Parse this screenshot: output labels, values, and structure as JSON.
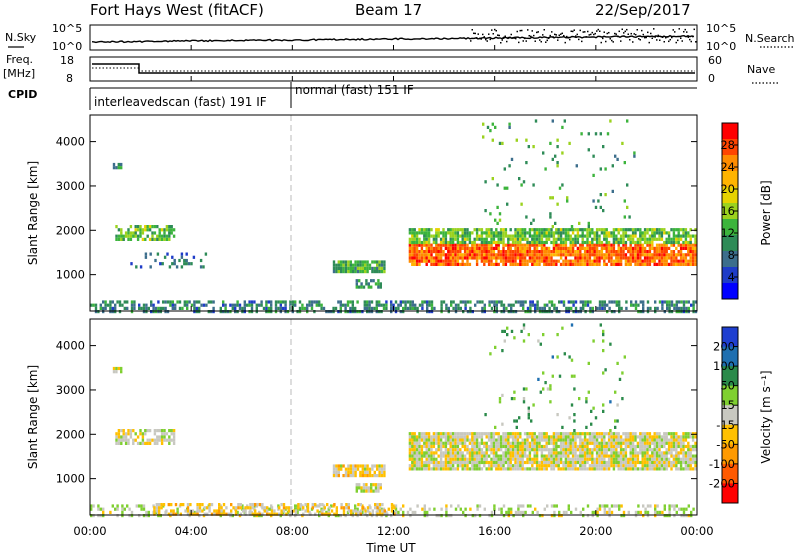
{
  "header": {
    "station": "Fort Hays West (fitACF)",
    "beam": "Beam 17",
    "date": "22/Sep/2017"
  },
  "top_panels": {
    "nsky_label": "N.Sky",
    "nsky_ticks": [
      "10^5",
      "10^0"
    ],
    "nsearch_label": "N.Search",
    "nsearch_ticks": [
      "10^5",
      "10^0"
    ],
    "freq_label": "Freq.",
    "freq_unit": "[MHz]",
    "freq_ticks": [
      "18",
      "8"
    ],
    "nave_label": "Nave",
    "nave_ticks": [
      "60",
      "0"
    ],
    "cpid_label": "CPID",
    "cpid_segments": [
      "interleavedscan (fast) 191 IF",
      "normal (fast) 151 IF"
    ]
  },
  "axes": {
    "ylabel": "Slant Range [km]",
    "xlabel": "Time UT",
    "yticks": [
      "4000",
      "3000",
      "2000",
      "1000"
    ],
    "xticks": [
      "00:00",
      "04:00",
      "08:00",
      "12:00",
      "16:00",
      "20:00",
      "00:00"
    ]
  },
  "colorbars": {
    "power": {
      "label": "Power [dB]",
      "ticks": [
        "28",
        "24",
        "20",
        "16",
        "12",
        "8",
        "4"
      ],
      "colors": [
        "#ff0000",
        "#ff4500",
        "#ff8c00",
        "#ffb400",
        "#e6d200",
        "#9bd21e",
        "#3cb43c",
        "#2e8b57",
        "#3c6e8c",
        "#1e3cc8",
        "#0000ff"
      ]
    },
    "velocity": {
      "label": "Velocity [m s⁻¹]",
      "ticks": [
        "200",
        "100",
        "50",
        "15",
        "-15",
        "-50",
        "-100",
        "-200"
      ],
      "colors": [
        "#1f3fcf",
        "#1f6fb0",
        "#2a8a4a",
        "#7fcf30",
        "#c8c8c0",
        "#ffc000",
        "#ff9a00",
        "#ff5a00",
        "#ff0000"
      ]
    }
  },
  "chart_data": [
    {
      "type": "heatmap",
      "title": "Power",
      "xlabel": "Time UT",
      "ylabel": "Slant Range [km]",
      "xlim_hours": [
        0,
        24
      ],
      "ylim_km": [
        180,
        4600
      ],
      "clim_dB": [
        0,
        32
      ],
      "regions": [
        {
          "t_start": 0.0,
          "t_end": 24.0,
          "r_min": 180,
          "r_max": 420,
          "value": 9,
          "density": 0.55
        },
        {
          "t_start": 0.9,
          "t_end": 1.2,
          "r_min": 3380,
          "r_max": 3520,
          "value": 10,
          "density": 0.9
        },
        {
          "t_start": 1.0,
          "t_end": 3.3,
          "r_min": 1820,
          "r_max": 2120,
          "value": 14,
          "density": 0.7
        },
        {
          "t_start": 1.5,
          "t_end": 4.6,
          "r_min": 1200,
          "r_max": 1500,
          "value": 8,
          "density": 0.25
        },
        {
          "t_start": 9.6,
          "t_end": 11.6,
          "r_min": 1050,
          "r_max": 1320,
          "value": 12,
          "density": 0.9
        },
        {
          "t_start": 10.5,
          "t_end": 11.5,
          "r_min": 700,
          "r_max": 900,
          "value": 10,
          "density": 0.7
        },
        {
          "t_start": 12.6,
          "t_end": 23.9,
          "r_min": 1250,
          "r_max": 1700,
          "value": 26,
          "density": 0.9
        },
        {
          "t_start": 12.6,
          "t_end": 23.9,
          "r_min": 1700,
          "r_max": 2050,
          "value": 14,
          "density": 0.8
        },
        {
          "t_start": 15.5,
          "t_end": 21.5,
          "r_min": 2100,
          "r_max": 4500,
          "value": 12,
          "density": 0.04
        }
      ]
    },
    {
      "type": "heatmap",
      "title": "Velocity",
      "xlabel": "Time UT",
      "ylabel": "Slant Range [km]",
      "xlim_hours": [
        0,
        24
      ],
      "ylim_km": [
        180,
        4600
      ],
      "clim_ms": [
        -250,
        250
      ],
      "regions": [
        {
          "t_start": 0.0,
          "t_end": 24.0,
          "r_min": 180,
          "r_max": 420,
          "value": 20,
          "density": 0.35
        },
        {
          "t_start": 2.5,
          "t_end": 12.0,
          "r_min": 180,
          "r_max": 450,
          "value": -40,
          "density": 0.55
        },
        {
          "t_start": 0.9,
          "t_end": 1.2,
          "r_min": 3380,
          "r_max": 3520,
          "value": 0,
          "density": 0.9
        },
        {
          "t_start": 1.0,
          "t_end": 3.3,
          "r_min": 1820,
          "r_max": 2120,
          "value": 0,
          "density": 0.7
        },
        {
          "t_start": 9.6,
          "t_end": 11.6,
          "r_min": 1050,
          "r_max": 1320,
          "value": -30,
          "density": 0.9
        },
        {
          "t_start": 10.5,
          "t_end": 11.5,
          "r_min": 700,
          "r_max": 900,
          "value": 0,
          "density": 0.7
        },
        {
          "t_start": 12.6,
          "t_end": 23.9,
          "r_min": 1250,
          "r_max": 2050,
          "value": 0,
          "density": 0.9
        },
        {
          "t_start": 15.5,
          "t_end": 21.5,
          "r_min": 2100,
          "r_max": 4500,
          "value": 80,
          "density": 0.04
        }
      ]
    }
  ]
}
